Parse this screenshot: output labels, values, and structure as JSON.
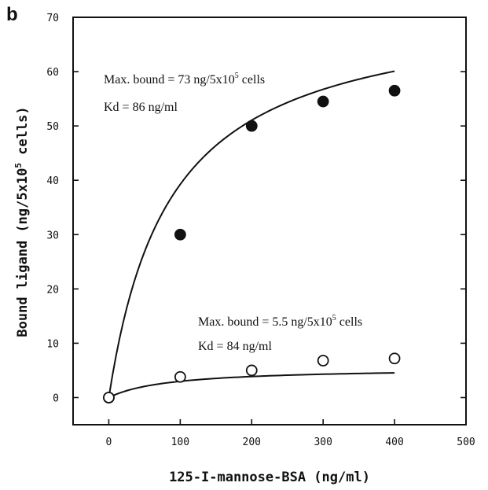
{
  "panel_label": "b",
  "chart_data": {
    "type": "scatter",
    "xlabel": "125-I-mannose-BSA (ng/ml)",
    "ylabel_main": "Bound ligand (ng/5x10",
    "ylabel_sup": "5",
    "ylabel_tail": " cells)",
    "xlim": [
      -50,
      500
    ],
    "ylim": [
      -5,
      70
    ],
    "x_ticks": [
      0,
      100,
      200,
      300,
      400,
      500
    ],
    "y_ticks": [
      0,
      10,
      20,
      30,
      40,
      50,
      60,
      70
    ],
    "series": [
      {
        "marker": "filled-circle",
        "x": [
          0,
          100,
          200,
          300,
          400
        ],
        "y": [
          0,
          30,
          50,
          54.5,
          56.5
        ],
        "fit": {
          "Bmax": 73,
          "Kd": 86
        },
        "annotation": {
          "line1_pre": "Max. bound = 73 ng/5x10",
          "line1_sup": "5",
          "line1_post": " cells",
          "line2": "Kd = 86 ng/ml"
        }
      },
      {
        "marker": "open-circle",
        "x": [
          0,
          100,
          200,
          300,
          400
        ],
        "y": [
          0,
          3.8,
          5,
          6.8,
          7.2
        ],
        "fit": {
          "Bmax": 5.5,
          "Kd": 84
        },
        "annotation": {
          "line1_pre": "Max. bound = 5.5 ng/5x10",
          "line1_sup": "5",
          "line1_post": " cells",
          "line2": "Kd = 84 ng/ml"
        }
      }
    ]
  }
}
